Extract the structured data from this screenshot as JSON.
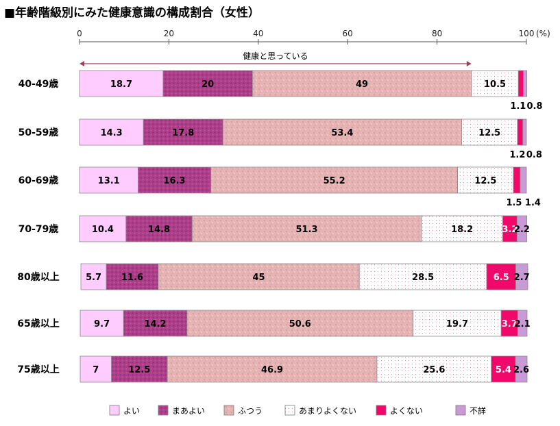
{
  "title": "■年齢階級別にみた健康意識の構成割合（女性）",
  "bracket_label": "健康と思っている",
  "unit_label": "(%)",
  "chart_data": {
    "type": "bar",
    "orientation": "horizontal",
    "stacked": true,
    "xlim": [
      0,
      100
    ],
    "x_ticks": [
      0,
      20,
      40,
      60,
      80,
      100
    ],
    "categories": [
      "40-49歳",
      "50-59歳",
      "60-69歳",
      "70-79歳",
      "80歳以上",
      "65歳以上",
      "75歳以上"
    ],
    "series": [
      {
        "name": "よい",
        "color": "#ffccff",
        "values": [
          18.7,
          14.3,
          13.1,
          10.4,
          5.7,
          9.7,
          7
        ]
      },
      {
        "name": "まあよい",
        "color": "#b0408c",
        "values": [
          20,
          17.8,
          16.3,
          14.8,
          11.6,
          14.2,
          12.5
        ]
      },
      {
        "name": "ふつう",
        "color": "#e8b8b8",
        "values": [
          49,
          53.4,
          55.2,
          51.3,
          45,
          50.6,
          46.9
        ]
      },
      {
        "name": "あまりよくない",
        "color": "#ffffff",
        "values": [
          10.5,
          12.5,
          12.5,
          18.2,
          28.5,
          19.7,
          25.6
        ]
      },
      {
        "name": "よくない",
        "color": "#f0086a",
        "values": [
          1.1,
          1.2,
          1.5,
          3.2,
          6.5,
          3.7,
          5.4
        ]
      },
      {
        "name": "不詳",
        "color": "#c89ad6",
        "values": [
          0.8,
          0.8,
          1.4,
          2.2,
          2.7,
          2.1,
          2.6
        ]
      }
    ],
    "legend_position": "bottom",
    "grid": false
  }
}
